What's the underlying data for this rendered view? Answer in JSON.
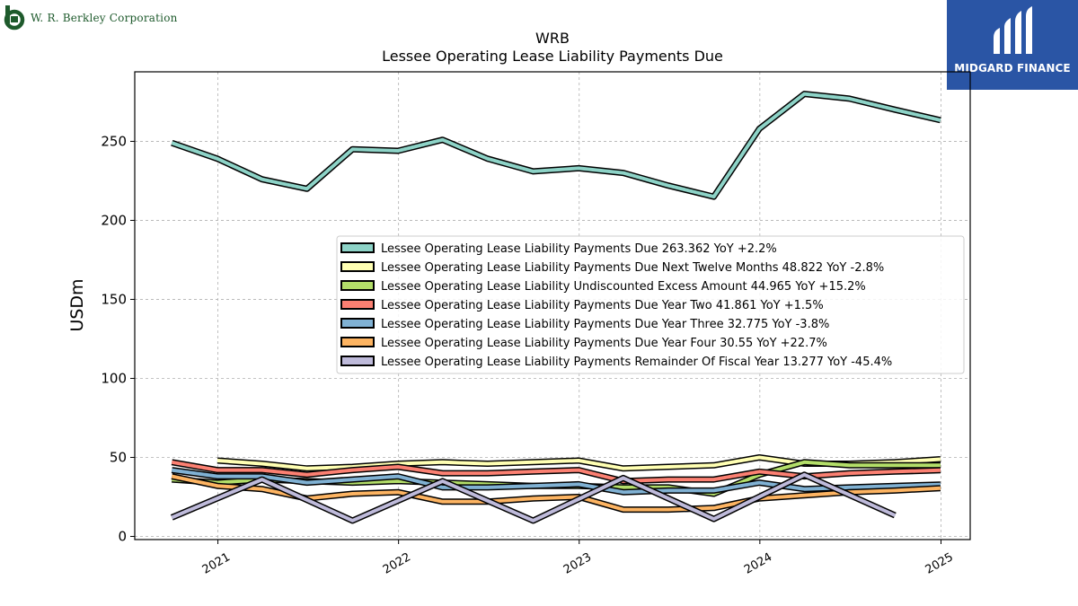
{
  "branding": {
    "left_name": "W. R. Berkley Corporation",
    "right_name": "MIDGARD FINANCE",
    "left_logo_color": "#1e5a2c",
    "right_bg_color": "#2a55a5"
  },
  "chart_data": {
    "type": "line",
    "title": "WRB",
    "subtitle": "Lessee Operating Lease Liability Payments Due",
    "ylabel": "USDm",
    "xlabel": "",
    "xlim": [
      "2020-07-17",
      "2025-03-01"
    ],
    "ylim": [
      -2,
      294
    ],
    "x_ticks": [
      {
        "date": "2021-01-01",
        "label": "2021"
      },
      {
        "date": "2022-01-01",
        "label": "2022"
      },
      {
        "date": "2023-01-01",
        "label": "2023"
      },
      {
        "date": "2024-01-01",
        "label": "2024"
      },
      {
        "date": "2025-01-01",
        "label": "2025"
      }
    ],
    "y_ticks": [
      0,
      50,
      100,
      150,
      200,
      250
    ],
    "grid": true,
    "legend_position": "center-right",
    "series": [
      {
        "name": "Lessee Operating Lease Liability Payments Due",
        "legend": "Lessee Operating Lease Liability Payments Due  263.362 YoY +2.2%",
        "color": "#8dd3c7",
        "x": [
          "2020-09-30",
          "2020-12-31",
          "2021-03-31",
          "2021-06-30",
          "2021-09-30",
          "2021-12-31",
          "2022-03-31",
          "2022-06-30",
          "2022-09-30",
          "2022-12-31",
          "2023-03-31",
          "2023-06-30",
          "2023-09-30",
          "2023-12-31",
          "2024-03-31",
          "2024-06-30",
          "2024-09-30",
          "2024-12-31"
        ],
        "values": [
          249,
          239,
          226,
          220,
          245,
          244,
          251,
          239,
          231,
          233,
          230,
          222,
          215,
          258,
          280,
          277,
          270,
          263.362
        ]
      },
      {
        "name": "Lessee Operating Lease Liability Payments Due Next Twelve Months",
        "legend": "Lessee Operating Lease Liability Payments Due Next Twelve Months  48.822 YoY -2.8%",
        "color": "#ffffb3",
        "x": [
          "2020-12-31",
          "2021-03-31",
          "2021-06-30",
          "2021-09-30",
          "2021-12-31",
          "2022-03-31",
          "2022-06-30",
          "2022-09-30",
          "2022-12-31",
          "2023-03-31",
          "2023-06-30",
          "2023-09-30",
          "2023-12-31",
          "2024-03-31",
          "2024-06-30",
          "2024-09-30",
          "2024-12-31"
        ],
        "values": [
          48,
          46,
          43,
          44,
          46,
          47,
          46,
          47,
          48,
          43,
          44,
          45,
          50,
          46,
          46,
          47,
          48.822
        ]
      },
      {
        "name": "Lessee Operating Lease Liability Undiscounted Excess Amount",
        "legend": "Lessee Operating Lease Liability Undiscounted Excess Amount  44.965 YoY +15.2%",
        "color": "#b3de69",
        "x": [
          "2020-09-30",
          "2020-12-31",
          "2021-03-31",
          "2021-06-30",
          "2021-09-30",
          "2021-12-31",
          "2022-03-31",
          "2022-06-30",
          "2022-09-30",
          "2022-12-31",
          "2023-03-31",
          "2023-06-30",
          "2023-09-30",
          "2023-12-31",
          "2024-03-31",
          "2024-06-30",
          "2024-09-30",
          "2024-12-31"
        ],
        "values": [
          36,
          34,
          36,
          35,
          34,
          35,
          34,
          33,
          32,
          32,
          31,
          31,
          27,
          39,
          47,
          45,
          45,
          44.965
        ]
      },
      {
        "name": "Lessee Operating Lease Liability Payments Due Year Two",
        "legend": "Lessee Operating Lease Liability Payments Due Year Two  41.861 YoY +1.5%",
        "color": "#fb8072",
        "x": [
          "2020-09-30",
          "2020-12-31",
          "2021-03-31",
          "2021-06-30",
          "2021-09-30",
          "2021-12-31",
          "2022-03-31",
          "2022-06-30",
          "2022-09-30",
          "2022-12-31",
          "2023-03-31",
          "2023-06-30",
          "2023-09-30",
          "2023-12-31",
          "2024-03-31",
          "2024-06-30",
          "2024-09-30",
          "2024-12-31"
        ],
        "values": [
          47,
          42,
          42,
          39,
          42,
          44,
          40,
          40,
          41,
          42,
          35,
          36,
          36,
          41,
          38,
          40,
          41,
          41.861
        ]
      },
      {
        "name": "Lessee Operating Lease Liability Payments Due Year Three",
        "legend": "Lessee Operating Lease Liability Payments Due Year Three  32.775 YoY -3.8%",
        "color": "#80b1d3",
        "x": [
          "2020-09-30",
          "2020-12-31",
          "2021-03-31",
          "2021-06-30",
          "2021-09-30",
          "2021-12-31",
          "2022-03-31",
          "2022-06-30",
          "2022-09-30",
          "2022-12-31",
          "2023-03-31",
          "2023-06-30",
          "2023-09-30",
          "2023-12-31",
          "2024-03-31",
          "2024-06-30",
          "2024-09-30",
          "2024-12-31"
        ],
        "values": [
          42,
          38,
          38,
          34,
          36,
          38,
          31,
          31,
          32,
          33,
          28,
          29,
          29,
          34,
          30,
          31,
          32,
          32.775
        ]
      },
      {
        "name": "Lessee Operating Lease Liability Payments Due Year Four",
        "legend": "Lessee Operating Lease Liability Payments Due Year Four  30.55 YoY +22.7%",
        "color": "#fdb462",
        "x": [
          "2020-09-30",
          "2020-12-31",
          "2021-03-31",
          "2021-06-30",
          "2021-09-30",
          "2021-12-31",
          "2022-03-31",
          "2022-06-30",
          "2022-09-30",
          "2022-12-31",
          "2023-03-31",
          "2023-06-30",
          "2023-09-30",
          "2023-12-31",
          "2024-03-31",
          "2024-06-30",
          "2024-09-30",
          "2024-12-31"
        ],
        "values": [
          38,
          32,
          30,
          24,
          27,
          28,
          22,
          22,
          24,
          25,
          17,
          17,
          18,
          24,
          26,
          28,
          29,
          30.55
        ]
      },
      {
        "name": "Lessee Operating Lease Liability Payments Remainder Of Fiscal Year",
        "legend": "Lessee Operating Lease Liability Payments Remainder Of Fiscal Year  13.277 YoY -45.4%",
        "color": "#bebada",
        "x": [
          "2020-09-30",
          "2021-03-31",
          "2021-09-30",
          "2022-03-31",
          "2022-09-30",
          "2023-03-31",
          "2023-09-30",
          "2024-03-31",
          "2024-09-30"
        ],
        "values": [
          12,
          36,
          10,
          35,
          10,
          37,
          11,
          39,
          13.277
        ]
      }
    ]
  }
}
